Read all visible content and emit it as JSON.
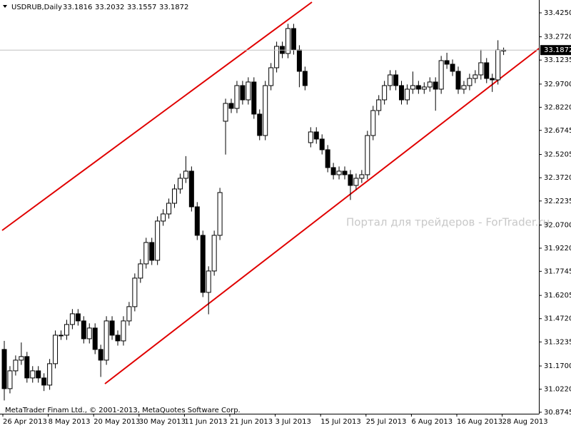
{
  "chart_data": {
    "type": "candlestick",
    "title": "USDRUB,Daily",
    "watermark": "Портал для трейдеров - ForTrader.ru",
    "copyright": "MetaTrader Finam Ltd., © 2001-2013, MetaQuotes Software Corp.",
    "categories": [
      "26 Apr 2013",
      null,
      null,
      null,
      null,
      null,
      null,
      null,
      "8 May 2013",
      null,
      null,
      null,
      null,
      null,
      null,
      null,
      "20 May 2013",
      null,
      null,
      null,
      null,
      null,
      null,
      null,
      "30 May 2013",
      null,
      null,
      null,
      null,
      null,
      null,
      null,
      "11 Jun 2013",
      null,
      null,
      null,
      null,
      null,
      null,
      null,
      "21 Jun 2013",
      null,
      null,
      null,
      null,
      null,
      null,
      null,
      "3 Jul 2013",
      null,
      null,
      null,
      null,
      null,
      null,
      null,
      "15 Jul 2013",
      null,
      null,
      null,
      null,
      null,
      null,
      null,
      "25 Jul 2013",
      null,
      null,
      null,
      null,
      null,
      null,
      null,
      "6 Aug 2013",
      null,
      null,
      null,
      null,
      null,
      null,
      null,
      "16 Aug 2013",
      null,
      null,
      null,
      null,
      null,
      null,
      null,
      "28 Aug 2013"
    ],
    "open": [
      31.2755,
      31.0251,
      31.1389,
      31.2072,
      31.23,
      31.0934,
      31.1389,
      31.0934,
      31.0478,
      31.1845,
      31.3666,
      31.3666,
      31.4349,
      31.5032,
      31.4577,
      31.3438,
      31.4122,
      31.2755,
      31.2072,
      31.4577,
      31.3666,
      31.3302,
      31.4577,
      31.5488,
      31.7309,
      31.822,
      31.9586,
      31.8448,
      32.0953,
      32.1408,
      32.2091,
      32.3002,
      32.3685,
      32.414,
      32.1863,
      32.0042,
      31.6399,
      31.7765,
      32.0042,
      32.7328,
      32.8467,
      32.8148,
      32.9605,
      32.8694,
      32.9833,
      32.7784,
      32.6417,
      32.9605,
      33.0744,
      33.211,
      33.1654,
      33.3248,
      33.1882,
      33.0516,
      32.5962,
      32.6645,
      32.619,
      32.5507,
      32.4368,
      32.3913,
      32.414,
      32.3913,
      32.323,
      32.3685,
      32.3913,
      32.6417,
      32.8011,
      32.8694,
      32.9605,
      33.0288,
      32.9605,
      32.8694,
      32.9377,
      32.9605,
      32.9377,
      32.9514,
      32.9833,
      32.9377,
      33.1199,
      33.0971,
      33.0516,
      32.9377,
      32.9605,
      33.0061,
      33.0288,
      33.1062,
      33.0061,
      32.997,
      33.1816
    ],
    "high": [
      31.33,
      31.1689,
      31.2372,
      31.32,
      31.26,
      31.1689,
      31.1689,
      31.1234,
      31.2145,
      31.3966,
      31.3966,
      31.4649,
      31.5332,
      31.5332,
      31.4877,
      31.4422,
      31.4422,
      31.3055,
      31.4877,
      31.4877,
      31.3966,
      31.4877,
      31.5788,
      31.7609,
      31.852,
      31.9886,
      31.9886,
      32.1253,
      32.1708,
      32.2391,
      32.3302,
      32.3985,
      32.51,
      32.444,
      32.2163,
      32.0342,
      31.8065,
      32.0342,
      32.3074,
      32.8767,
      32.8767,
      32.9905,
      32.9905,
      33.0133,
      33.0133,
      32.8084,
      32.9905,
      33.1044,
      33.241,
      33.241,
      33.3548,
      33.3548,
      33.2182,
      33.0816,
      32.6945,
      32.6945,
      32.649,
      32.5807,
      32.4668,
      32.444,
      32.444,
      32.4213,
      32.3985,
      32.4213,
      32.6717,
      32.8311,
      32.8994,
      32.9905,
      33.0588,
      33.0588,
      32.9905,
      32.9677,
      33.05,
      32.9905,
      32.9814,
      33.0133,
      33.0133,
      33.1499,
      33.17,
      33.1271,
      33.0816,
      32.9905,
      33.0361,
      33.0588,
      33.19,
      33.1362,
      33.0361,
      33.25,
      33.2032
    ],
    "low": [
      30.95,
      30.9951,
      31.1089,
      31.1772,
      31.0634,
      31.0634,
      31.0634,
      31.01,
      31.0178,
      31.1545,
      31.3366,
      31.3366,
      31.4049,
      31.4277,
      31.3138,
      31.3138,
      31.2455,
      31.1,
      31.1772,
      31.3366,
      31.3002,
      31.3002,
      31.4277,
      31.5188,
      31.7009,
      31.792,
      31.8148,
      31.8148,
      32.0653,
      32.1108,
      32.1791,
      32.2702,
      32.3385,
      32.1563,
      31.9742,
      31.6099,
      31.5,
      31.7465,
      31.9742,
      32.52,
      32.7848,
      32.7848,
      32.8394,
      32.8394,
      32.7484,
      32.6117,
      32.6117,
      32.9305,
      33.0444,
      33.1354,
      33.1354,
      33.1582,
      32.95,
      32.9305,
      32.5662,
      32.589,
      32.5207,
      32.4068,
      32.3613,
      32.3613,
      32.3613,
      32.23,
      32.293,
      32.3385,
      32.3613,
      32.6117,
      32.7711,
      32.8394,
      32.9305,
      32.9305,
      32.8394,
      32.8394,
      32.9077,
      32.9077,
      32.9077,
      32.9214,
      32.8,
      32.9077,
      33.0671,
      33.0216,
      32.9077,
      32.9077,
      32.9305,
      32.9761,
      32.9988,
      32.9761,
      32.92,
      32.967,
      33.1557
    ],
    "close": [
      31.0251,
      31.1389,
      31.2072,
      31.23,
      31.0934,
      31.1389,
      31.0934,
      31.0478,
      31.1845,
      31.3666,
      31.3666,
      31.4349,
      31.5032,
      31.4577,
      31.3438,
      31.4122,
      31.2755,
      31.2072,
      31.4577,
      31.3666,
      31.3302,
      31.4577,
      31.5488,
      31.7309,
      31.822,
      31.9586,
      31.8448,
      32.0953,
      32.1408,
      32.2091,
      32.3002,
      32.3685,
      32.414,
      32.1863,
      32.0042,
      31.6399,
      31.7765,
      32.0042,
      32.2774,
      32.8467,
      32.8148,
      32.9605,
      32.8694,
      32.9833,
      32.7784,
      32.6417,
      32.9605,
      33.0744,
      33.211,
      33.1654,
      33.3248,
      33.1882,
      33.0516,
      32.9605,
      32.6645,
      32.619,
      32.5507,
      32.4368,
      32.3913,
      32.414,
      32.3913,
      32.323,
      32.3685,
      32.3913,
      32.6417,
      32.8011,
      32.8694,
      32.9605,
      33.0288,
      32.9605,
      32.8694,
      32.9377,
      32.9605,
      32.9377,
      32.9514,
      32.9833,
      32.9377,
      33.1199,
      33.0971,
      33.0516,
      32.9377,
      32.9605,
      33.0061,
      33.0288,
      33.1062,
      33.0061,
      32.997,
      33.1882,
      33.1872
    ],
    "up_color": "#ffffff",
    "down_color": "#000000",
    "ylim": [
      30.865,
      33.507
    ],
    "yticks": [
      {
        "value": 33.425,
        "label": "33.4250"
      },
      {
        "value": 33.272,
        "label": "33.2720"
      },
      33.1235,
      {
        "value": 32.97,
        "label": "32.9700"
      },
      {
        "value": 32.822,
        "label": "32.8220"
      },
      32.6745,
      32.5205,
      {
        "value": 32.372,
        "label": "32.3720"
      },
      32.2235,
      {
        "value": 32.07,
        "label": "32.0700"
      },
      {
        "value": 31.922,
        "label": "31.9220"
      },
      31.7745,
      31.6205,
      {
        "value": 31.472,
        "label": "31.4720"
      },
      31.3235,
      {
        "value": 31.17,
        "label": "31.1700"
      },
      {
        "value": 31.022,
        "label": "31.0220"
      },
      30.8745
    ]
  }
}
